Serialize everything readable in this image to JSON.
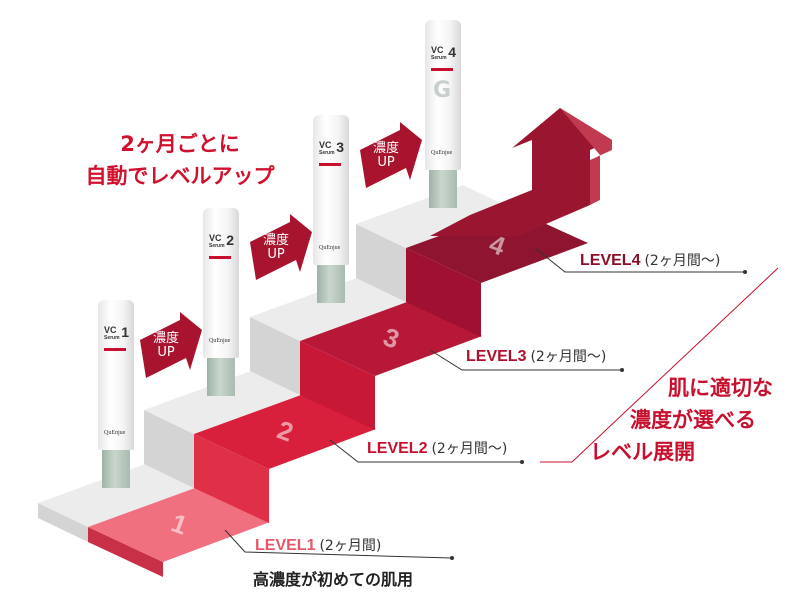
{
  "headline": {
    "line1": "2ヶ月ごとに",
    "line2": "自動でレベルアップ"
  },
  "side_copy": {
    "line1": "肌に適切な",
    "line2": "濃度が選べる",
    "line3": "レベル展開"
  },
  "up_badge": {
    "line1": "濃度",
    "line2": "UP"
  },
  "levels": [
    {
      "label": "LEVEL1",
      "period": "(2ヶ月間)",
      "step_number": "1",
      "color": "#e8566a",
      "note": "高濃度が初めての肌用"
    },
    {
      "label": "LEVEL2",
      "period": "(2ヶ月間〜)",
      "step_number": "2",
      "color": "#c8102e"
    },
    {
      "label": "LEVEL3",
      "period": "(2ヶ月間〜)",
      "step_number": "3",
      "color": "#b0102e"
    },
    {
      "label": "LEVEL4",
      "period": "(2ヶ月間〜)",
      "step_number": "4",
      "color": "#8a1028"
    }
  ],
  "tube": {
    "name": "VC",
    "sub": "Serum",
    "brand": "QuEnjue",
    "level4_mark": "+G"
  },
  "colors": {
    "accent": "#c8102e",
    "step_gray": "#e4e4e4"
  }
}
